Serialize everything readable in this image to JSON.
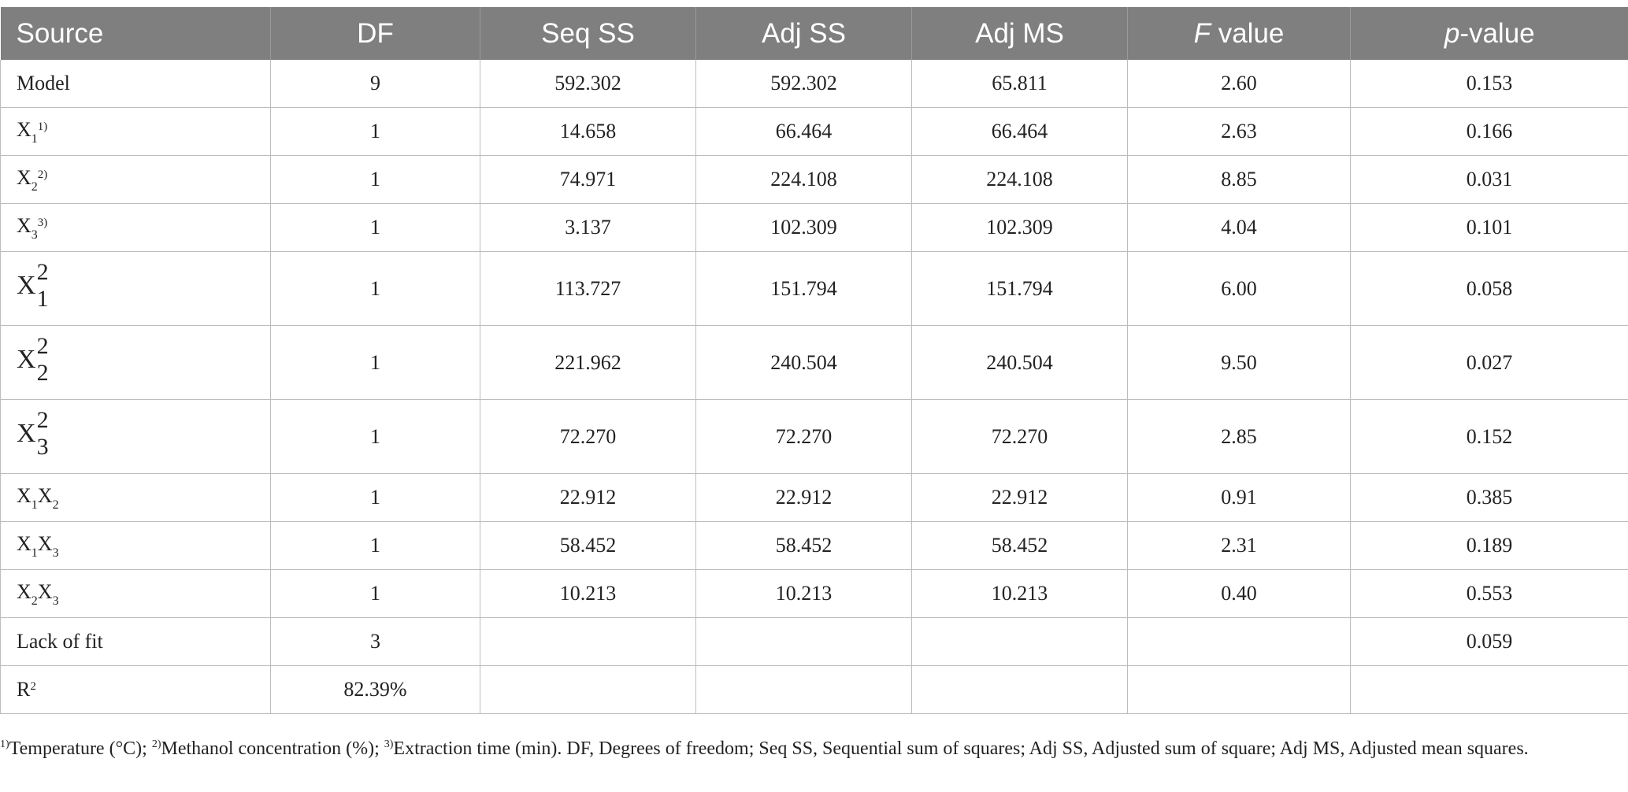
{
  "table": {
    "headers": {
      "source": "Source",
      "df": "DF",
      "seq_ss": "Seq SS",
      "adj_ss": "Adj SS",
      "adj_ms": "Adj MS",
      "f_italic": "F",
      "f_rest": " value",
      "p_italic": "p",
      "p_rest": "-value"
    },
    "rows": [
      {
        "source": "Model",
        "df": "9",
        "seq_ss": "592.302",
        "adj_ss": "592.302",
        "adj_ms": "65.811",
        "f": "2.60",
        "p": "0.153"
      },
      {
        "source_base": "X",
        "source_sub": "1",
        "source_note": "1)",
        "df": "1",
        "seq_ss": "14.658",
        "adj_ss": "66.464",
        "adj_ms": "66.464",
        "f": "2.63",
        "p": "0.166"
      },
      {
        "source_base": "X",
        "source_sub": "2",
        "source_note": "2)",
        "df": "1",
        "seq_ss": "74.971",
        "adj_ss": "224.108",
        "adj_ms": "224.108",
        "f": "8.85",
        "p": "0.031"
      },
      {
        "source_base": "X",
        "source_sub": "3",
        "source_note": "3)",
        "df": "1",
        "seq_ss": "3.137",
        "adj_ss": "102.309",
        "adj_ms": "102.309",
        "f": "4.04",
        "p": "0.101"
      },
      {
        "source_base": "X",
        "source_sub": "1",
        "source_sup": "2",
        "df": "1",
        "seq_ss": "113.727",
        "adj_ss": "151.794",
        "adj_ms": "151.794",
        "f": "6.00",
        "p": "0.058"
      },
      {
        "source_base": "X",
        "source_sub": "2",
        "source_sup": "2",
        "df": "1",
        "seq_ss": "221.962",
        "adj_ss": "240.504",
        "adj_ms": "240.504",
        "f": "9.50",
        "p": "0.027"
      },
      {
        "source_base": "X",
        "source_sub": "3",
        "source_sup": "2",
        "df": "1",
        "seq_ss": "72.270",
        "adj_ss": "72.270",
        "adj_ms": "72.270",
        "f": "2.85",
        "p": "0.152"
      },
      {
        "source_base": "X",
        "source_sub": "1",
        "source_base2": "X",
        "source_sub2": "2",
        "df": "1",
        "seq_ss": "22.912",
        "adj_ss": "22.912",
        "adj_ms": "22.912",
        "f": "0.91",
        "p": "0.385"
      },
      {
        "source_base": "X",
        "source_sub": "1",
        "source_base2": "X",
        "source_sub2": "3",
        "df": "1",
        "seq_ss": "58.452",
        "adj_ss": "58.452",
        "adj_ms": "58.452",
        "f": "2.31",
        "p": "0.189"
      },
      {
        "source_base": "X",
        "source_sub": "2",
        "source_base2": "X",
        "source_sub2": "3",
        "df": "1",
        "seq_ss": "10.213",
        "adj_ss": "10.213",
        "adj_ms": "10.213",
        "f": "0.40",
        "p": "0.553"
      },
      {
        "source": "Lack of fit",
        "df": "3",
        "seq_ss": "",
        "adj_ss": "",
        "adj_ms": "",
        "f": "",
        "p": "0.059"
      },
      {
        "source_base": "R",
        "source_supsmall": "2",
        "df": "82.39%",
        "seq_ss": "",
        "adj_ss": "",
        "adj_ms": "",
        "f": "",
        "p": ""
      }
    ]
  },
  "footnote": {
    "n1": "1)",
    "t1": "Temperature (°C); ",
    "n2": "2)",
    "t2": "Methanol concentration (%); ",
    "n3": "3)",
    "t3": "Extraction time (min). DF, Degrees of freedom; Seq SS, Sequential sum of squares; Adj SS, Adjusted sum of square; Adj MS, Adjusted mean squares."
  }
}
